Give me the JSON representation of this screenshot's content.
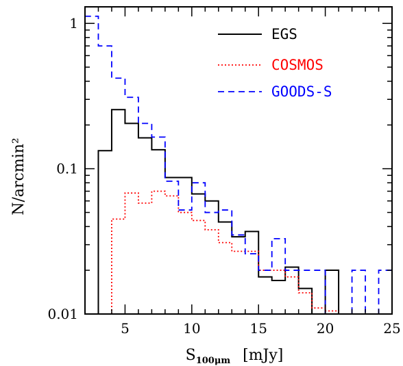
{
  "chart_data": {
    "type": "line",
    "drawstyle": "steps",
    "xlabel_main": "S",
    "xlabel_sub": "100μm",
    "xlabel_unit": "[mJy]",
    "ylabel": "N/arcmin²",
    "xlim": [
      2,
      25
    ],
    "ylim": [
      0.01,
      1.3
    ],
    "yscale": "log",
    "x_ticks": [
      5,
      10,
      15,
      20,
      25
    ],
    "x_tick_labels": [
      "5",
      "10",
      "15",
      "20",
      "25"
    ],
    "y_ticks": [
      1,
      0.1,
      0.01
    ],
    "y_tick_labels": [
      "1",
      "0.1",
      "0.01"
    ],
    "grid": false,
    "legend_position": "top-right",
    "series": [
      {
        "name": "EGS",
        "color": "#000000",
        "linestyle": "solid",
        "bin_edges": [
          3,
          4,
          5,
          6,
          7,
          8,
          9,
          10,
          11,
          12,
          13,
          14,
          15,
          16,
          17,
          18,
          19,
          20,
          21
        ],
        "values": [
          0.133,
          0.255,
          0.205,
          0.163,
          0.135,
          0.087,
          0.087,
          0.067,
          0.06,
          0.043,
          0.034,
          0.037,
          0.018,
          0.017,
          0.021,
          0.015,
          0.008,
          0.02
        ]
      },
      {
        "name": "COSMOS",
        "color": "#ff0000",
        "linestyle": "dotted",
        "bin_edges": [
          4,
          5,
          6,
          7,
          8,
          9,
          10,
          11,
          12,
          13,
          14,
          15,
          16,
          17,
          18,
          19,
          20,
          21
        ],
        "values": [
          0.045,
          0.068,
          0.058,
          0.07,
          0.065,
          0.05,
          0.044,
          0.038,
          0.031,
          0.027,
          0.027,
          0.02,
          0.02,
          0.018,
          0.014,
          0.011,
          0.0105
        ]
      },
      {
        "name": "GOODS-S",
        "color": "#0000ff",
        "linestyle": "dashed",
        "bin_edges": [
          2,
          3,
          4,
          5,
          6,
          7,
          8,
          9,
          10,
          11,
          12,
          13,
          14,
          15,
          16,
          17,
          18,
          19,
          20,
          21,
          22,
          23,
          24,
          25
        ],
        "values": [
          1.12,
          0.7,
          0.42,
          0.31,
          0.205,
          0.165,
          0.082,
          0.052,
          0.08,
          0.05,
          0.052,
          0.035,
          0.026,
          0.02,
          0.033,
          0.02,
          0.02,
          0.02,
          0.0,
          0.0,
          0.02,
          0.0,
          0.02
        ]
      }
    ]
  }
}
